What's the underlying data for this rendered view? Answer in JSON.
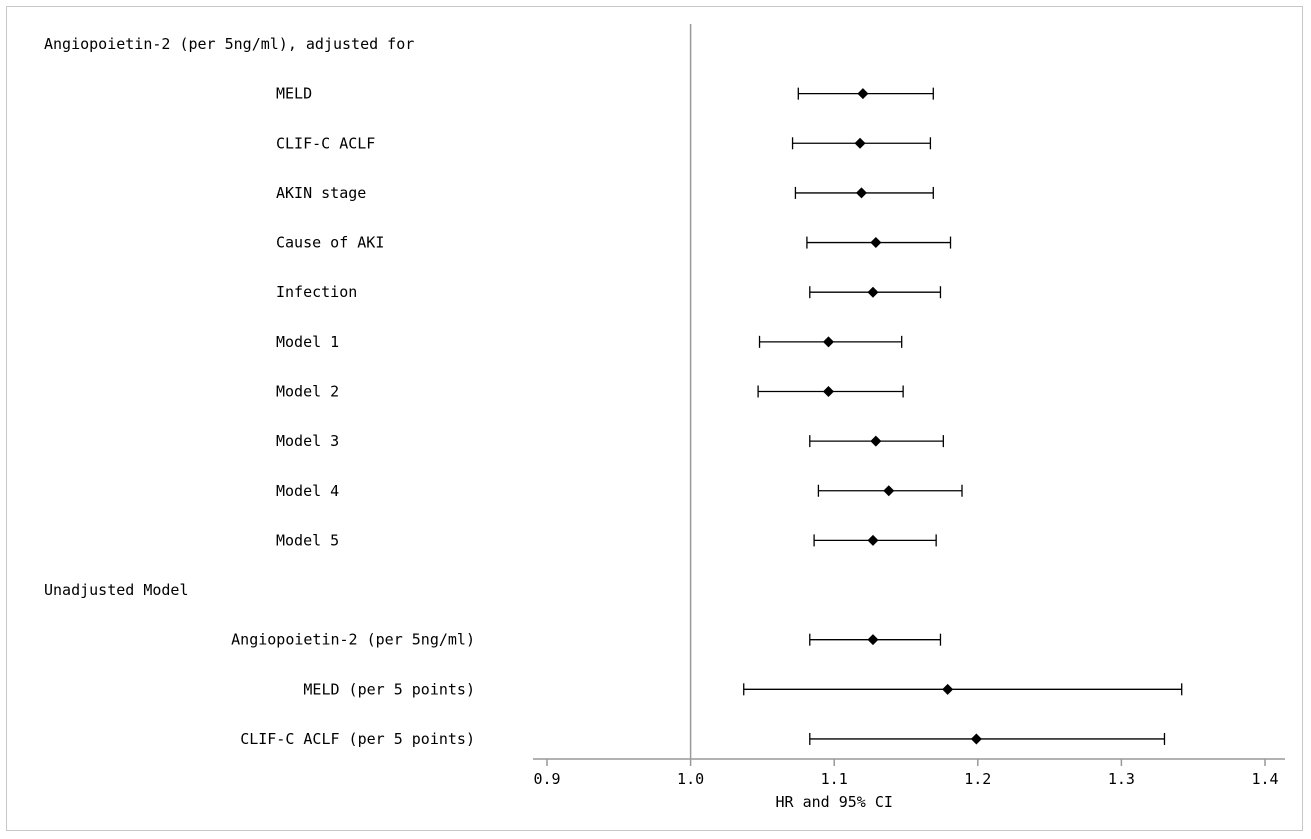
{
  "chart_data": {
    "type": "forest",
    "xlabel": "HR and 95% CI",
    "xlim": [
      0.9,
      1.4
    ],
    "xticks": [
      {
        "value": 0.9,
        "label": "0.9"
      },
      {
        "value": 1.0,
        "label": "1.0"
      },
      {
        "value": 1.1,
        "label": "1.1"
      },
      {
        "value": 1.2,
        "label": "1.2"
      },
      {
        "value": 1.3,
        "label": "1.3"
      },
      {
        "value": 1.4,
        "label": "1.4"
      }
    ],
    "reference_line": 1.0,
    "rows": [
      {
        "label": "Angiopoietin-2 (per 5ng/ml), adjusted for",
        "level": "header"
      },
      {
        "label": "MELD",
        "level": "item",
        "hr": 1.12,
        "lower": 1.075,
        "upper": 1.169
      },
      {
        "label": "CLIF-C ACLF",
        "level": "item",
        "hr": 1.118,
        "lower": 1.071,
        "upper": 1.167
      },
      {
        "label": "AKIN stage",
        "level": "item",
        "hr": 1.119,
        "lower": 1.073,
        "upper": 1.169
      },
      {
        "label": "Cause of AKI",
        "level": "item",
        "hr": 1.129,
        "lower": 1.081,
        "upper": 1.181
      },
      {
        "label": "Infection",
        "level": "item",
        "hr": 1.127,
        "lower": 1.083,
        "upper": 1.174
      },
      {
        "label": "Model 1",
        "level": "item",
        "hr": 1.096,
        "lower": 1.048,
        "upper": 1.147
      },
      {
        "label": "Model 2",
        "level": "item",
        "hr": 1.096,
        "lower": 1.047,
        "upper": 1.148
      },
      {
        "label": "Model 3",
        "level": "item",
        "hr": 1.129,
        "lower": 1.083,
        "upper": 1.176
      },
      {
        "label": "Model 4",
        "level": "item",
        "hr": 1.138,
        "lower": 1.089,
        "upper": 1.189
      },
      {
        "label": "Model 5",
        "level": "item",
        "hr": 1.127,
        "lower": 1.086,
        "upper": 1.171
      },
      {
        "label": "Unadjusted Model",
        "level": "header"
      },
      {
        "label": "Angiopoietin-2 (per 5ng/ml)",
        "level": "subitem",
        "hr": 1.127,
        "lower": 1.083,
        "upper": 1.174
      },
      {
        "label": "MELD (per 5 points)",
        "level": "subitem",
        "hr": 1.179,
        "lower": 1.037,
        "upper": 1.342
      },
      {
        "label": "CLIF-C ACLF (per 5 points)",
        "level": "subitem",
        "hr": 1.199,
        "lower": 1.083,
        "upper": 1.33
      }
    ]
  },
  "colors": {
    "marker": "#000000",
    "ci_line": "#000000",
    "reference_line": "#999999",
    "axis": "#999999",
    "frame_border": "#c8c8c8"
  }
}
